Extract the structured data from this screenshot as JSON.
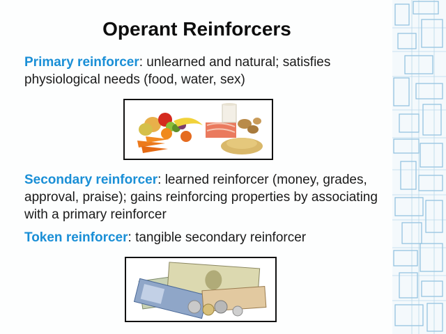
{
  "slide": {
    "title": "Operant Reinforcers",
    "primary": {
      "term": "Primary reinforcer",
      "text": ": unlearned and natural; satisfies physiological needs (food, water, sex)"
    },
    "secondary": {
      "term": "Secondary reinforcer",
      "text": ": learned reinforcer (money, grades, approval, praise); gains reinforcing properties by associating with a primary reinforcer"
    },
    "token": {
      "term": "Token reinforcer",
      "text": ": tangible secondary reinforcer"
    }
  },
  "colors": {
    "term": "#1a8fd6",
    "border_lines": "#7ab6d8"
  }
}
